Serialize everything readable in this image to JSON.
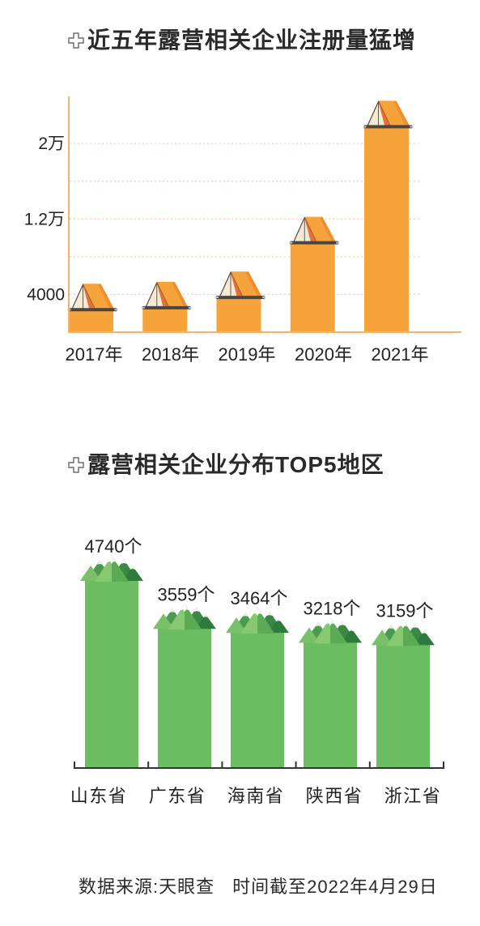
{
  "icons": {
    "title_marker": "cross-icon",
    "chart1_bar_top": "tent-icon",
    "chart2_bar_top": "mountain-icon"
  },
  "chart_data": [
    {
      "type": "bar",
      "title": "近五年露营相关企业注册量猛增",
      "categories": [
        "2017年",
        "2018年",
        "2019年",
        "2020年",
        "2021年"
      ],
      "values": [
        2300,
        2500,
        3600,
        9400,
        21700
      ],
      "yticks": {
        "values": [
          4000,
          12000,
          20000
        ],
        "labels": [
          "4000",
          "1.2万",
          "2万"
        ]
      },
      "ylim": [
        0,
        25000
      ],
      "grid": true,
      "colors": {
        "bar": "#F5A33A",
        "axis": "#F2B46A",
        "grid": "#E6CFA8"
      }
    },
    {
      "type": "bar",
      "title": "露营相关企业分布TOP5地区",
      "categories": [
        "山东省",
        "广东省",
        "海南省",
        "陕西省",
        "浙江省"
      ],
      "values": [
        4740,
        3559,
        3464,
        3218,
        3159
      ],
      "data_labels": [
        "4740个",
        "3559个",
        "3464个",
        "3218个",
        "3159个"
      ],
      "grid": false,
      "colors": {
        "bar": "#6CBD61",
        "bar_top": "#5EAF54",
        "axis": "#333333"
      }
    }
  ],
  "footer": {
    "source": "数据来源:天眼查",
    "as_of": "时间截至2022年4月29日"
  }
}
